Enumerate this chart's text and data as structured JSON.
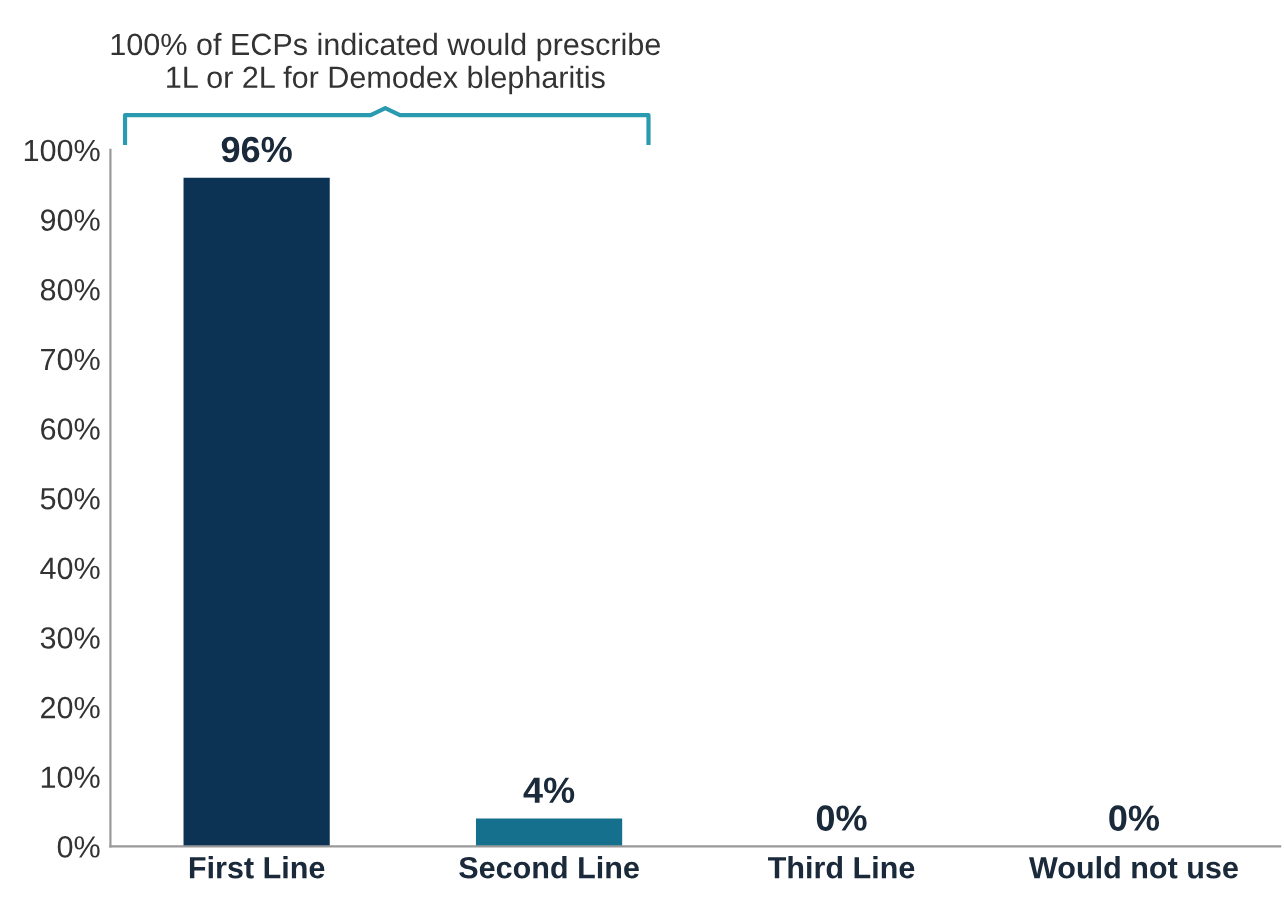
{
  "chart_data": {
    "type": "bar",
    "categories": [
      "First Line",
      "Second Line",
      "Third Line",
      "Would not use"
    ],
    "values": [
      96,
      4,
      0,
      0
    ],
    "colors": [
      "#0c3353",
      "#14708d",
      "#14708d",
      "#14708d"
    ],
    "value_labels": [
      "96%",
      "4%",
      "0%",
      "0%"
    ],
    "ylim": [
      0,
      100
    ],
    "yticks": [
      {
        "value": 0,
        "label": "0%"
      },
      {
        "value": 10,
        "label": "10%"
      },
      {
        "value": 20,
        "label": "20%"
      },
      {
        "value": 30,
        "label": "30%"
      },
      {
        "value": 40,
        "label": "40%"
      },
      {
        "value": 50,
        "label": "50%"
      },
      {
        "value": 60,
        "label": "60%"
      },
      {
        "value": 70,
        "label": "70%"
      },
      {
        "value": 80,
        "label": "80%"
      },
      {
        "value": 90,
        "label": "90%"
      },
      {
        "value": 100,
        "label": "100%"
      }
    ],
    "annotations": [
      "100% of ECPs indicated would prescribe\n1L or 2L for Demodex blepharitis"
    ],
    "grid": false,
    "legend": false
  }
}
